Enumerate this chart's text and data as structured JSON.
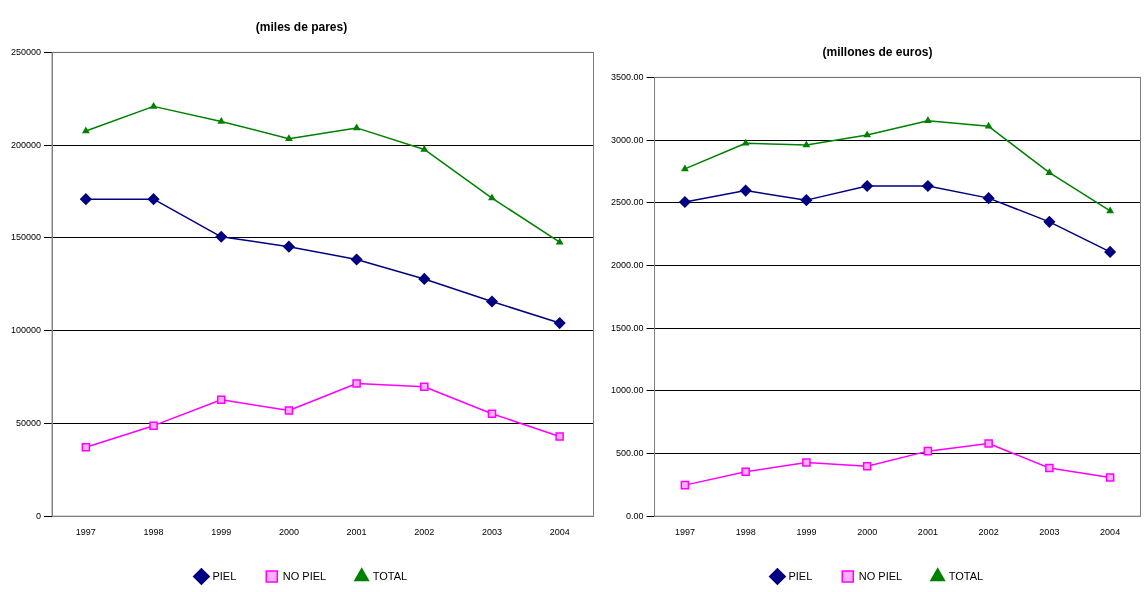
{
  "chart_data": [
    {
      "type": "line",
      "title": "(miles de pares)",
      "categories": [
        "1997",
        "1998",
        "1999",
        "2000",
        "2001",
        "2002",
        "2003",
        "2004"
      ],
      "series": [
        {
          "name": "PIEL",
          "color": "#000080",
          "marker": "diamond",
          "values": [
            170900,
            170900,
            150600,
            145300,
            138400,
            127900,
            115700,
            104100
          ]
        },
        {
          "name": "NO PIEL",
          "color": "#ff00ff",
          "marker": "square",
          "values": [
            37200,
            48800,
            62800,
            57000,
            71500,
            69800,
            55200,
            43000
          ]
        },
        {
          "name": "TOTAL",
          "color": "#008000",
          "marker": "triangle",
          "values": [
            207600,
            220900,
            212800,
            203500,
            209300,
            197700,
            171500,
            147700
          ]
        }
      ],
      "ylim": [
        0,
        250000
      ],
      "yticks": [
        0,
        50000,
        100000,
        150000,
        200000,
        250000
      ],
      "grid": "y",
      "legend": "bottom"
    },
    {
      "type": "line",
      "title": "(millones de euros)",
      "categories": [
        "1997",
        "1998",
        "1999",
        "2000",
        "2001",
        "2002",
        "2003",
        "2004"
      ],
      "series": [
        {
          "name": "PIEL",
          "color": "#000080",
          "marker": "diamond",
          "values": [
            2506,
            2597,
            2521,
            2634,
            2634,
            2537,
            2348,
            2108
          ]
        },
        {
          "name": "NO PIEL",
          "color": "#ff00ff",
          "marker": "square",
          "values": [
            248,
            354,
            429,
            399,
            519,
            580,
            384,
            309
          ]
        },
        {
          "name": "TOTAL",
          "color": "#008000",
          "marker": "triangle",
          "values": [
            2770,
            2975,
            2960,
            3040,
            3155,
            3110,
            2740,
            2435
          ]
        }
      ],
      "ylim": [
        0,
        3500
      ],
      "yticks": [
        {
          "value": 0,
          "label": "0.00"
        },
        {
          "value": 500,
          "label": "500.00"
        },
        {
          "value": 1000,
          "label": "1000.00"
        },
        {
          "value": 1500,
          "label": "1500.00"
        },
        {
          "value": 2000,
          "label": "2000.00"
        },
        {
          "value": 2500,
          "label": "2500.00"
        },
        {
          "value": 3000,
          "label": "3000.00"
        },
        {
          "value": 3500,
          "label": "3500.00"
        }
      ],
      "grid": "y",
      "legend": "bottom"
    }
  ]
}
